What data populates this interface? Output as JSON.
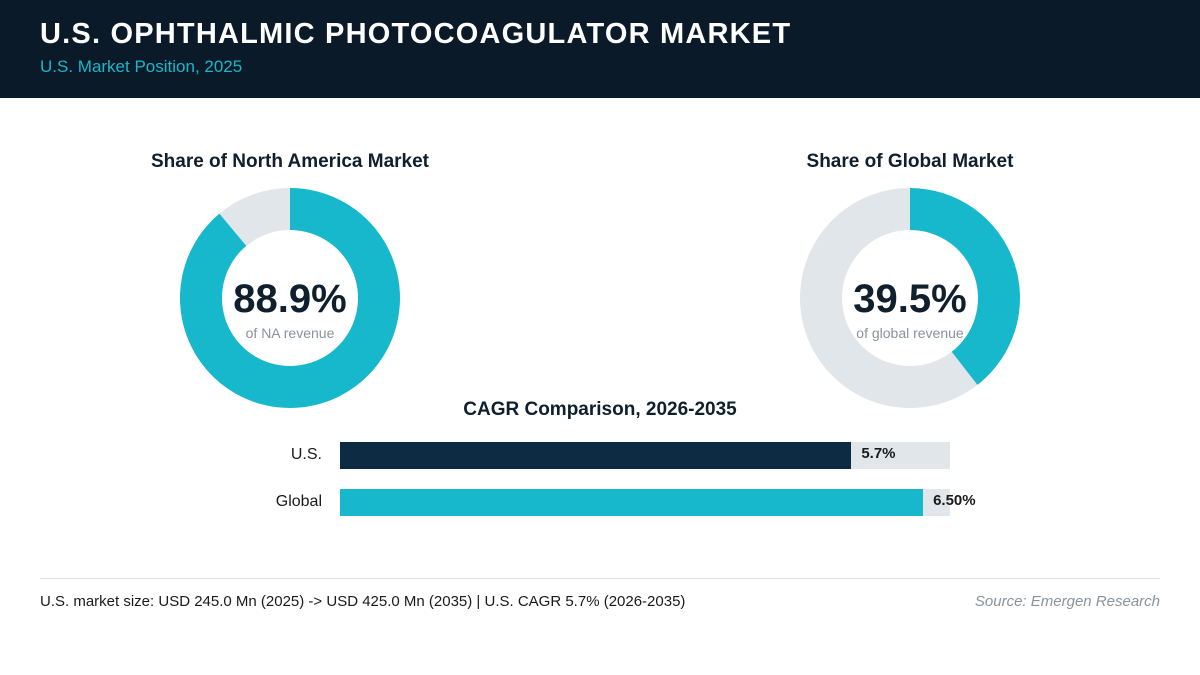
{
  "header": {
    "title": "U.S. OPHTHALMIC PHOTOCOAGULATOR MARKET",
    "subtitle": "U.S. Market Position, 2025"
  },
  "colors": {
    "header_bg": "#0a1a28",
    "accent": "#17b8cc",
    "dark": "#0d2b42",
    "track": "#e1e6ea"
  },
  "donuts": [
    {
      "title": "Share of North America Market",
      "value_label": "88.9%",
      "caption": "of NA revenue",
      "share": 88.9
    },
    {
      "title": "Share of Global Market",
      "value_label": "39.5%",
      "caption": "of global revenue",
      "share": 39.5
    }
  ],
  "chart_data": [
    {
      "type": "pie",
      "title": "Share of North America Market",
      "values": [
        88.9,
        11.1
      ],
      "unit": "%"
    },
    {
      "type": "pie",
      "title": "Share of Global Market",
      "values": [
        39.5,
        60.5
      ],
      "unit": "%"
    },
    {
      "type": "bar",
      "title": "CAGR Comparison, 2026-2035",
      "orientation": "horizontal",
      "categories": [
        "U.S.",
        "Global"
      ],
      "values": [
        5.7,
        6.5
      ],
      "value_labels": [
        "5.7%",
        "6.50%"
      ],
      "xlim": [
        0,
        6.8
      ],
      "unit": "%"
    }
  ],
  "bars": {
    "title": "CAGR Comparison, 2026-2035",
    "rows": [
      {
        "label": "U.S.",
        "value_label": "5.7%"
      },
      {
        "label": "Global",
        "value_label": "6.50%"
      }
    ]
  },
  "footer": {
    "note": "U.S. market size: USD 245.0 Mn (2025) -> USD 425.0 Mn (2035)  |  U.S. CAGR 5.7% (2026-2035)",
    "source": "Source: Emergen Research"
  }
}
